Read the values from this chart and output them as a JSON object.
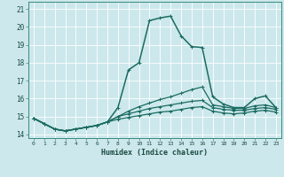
{
  "xlabel": "Humidex (Indice chaleur)",
  "background_color": "#cce8ec",
  "grid_color": "#ffffff",
  "line_color": "#1a6b60",
  "xlim": [
    -0.5,
    23.5
  ],
  "ylim": [
    13.8,
    21.4
  ],
  "xticks": [
    0,
    1,
    2,
    3,
    4,
    5,
    6,
    7,
    8,
    9,
    10,
    11,
    12,
    13,
    14,
    15,
    16,
    17,
    18,
    19,
    20,
    21,
    22,
    23
  ],
  "yticks": [
    14,
    15,
    16,
    17,
    18,
    19,
    20,
    21
  ],
  "series": [
    [
      14.9,
      14.6,
      14.3,
      14.2,
      14.3,
      14.4,
      14.5,
      14.7,
      15.5,
      17.6,
      18.0,
      20.35,
      20.5,
      20.6,
      19.5,
      18.9,
      18.85,
      16.1,
      15.7,
      15.5,
      15.5,
      16.0,
      16.15,
      15.5
    ],
    [
      14.9,
      14.6,
      14.3,
      14.2,
      14.3,
      14.4,
      14.5,
      14.7,
      15.0,
      15.3,
      15.55,
      15.75,
      15.95,
      16.1,
      16.3,
      16.5,
      16.65,
      15.65,
      15.55,
      15.45,
      15.45,
      15.6,
      15.65,
      15.5
    ],
    [
      14.9,
      14.6,
      14.3,
      14.2,
      14.3,
      14.4,
      14.5,
      14.7,
      15.0,
      15.15,
      15.3,
      15.45,
      15.55,
      15.65,
      15.75,
      15.85,
      15.9,
      15.5,
      15.4,
      15.35,
      15.35,
      15.45,
      15.5,
      15.4
    ],
    [
      14.9,
      14.6,
      14.3,
      14.2,
      14.3,
      14.4,
      14.5,
      14.7,
      14.85,
      14.95,
      15.05,
      15.15,
      15.25,
      15.3,
      15.4,
      15.5,
      15.55,
      15.3,
      15.2,
      15.15,
      15.2,
      15.3,
      15.35,
      15.25
    ]
  ]
}
